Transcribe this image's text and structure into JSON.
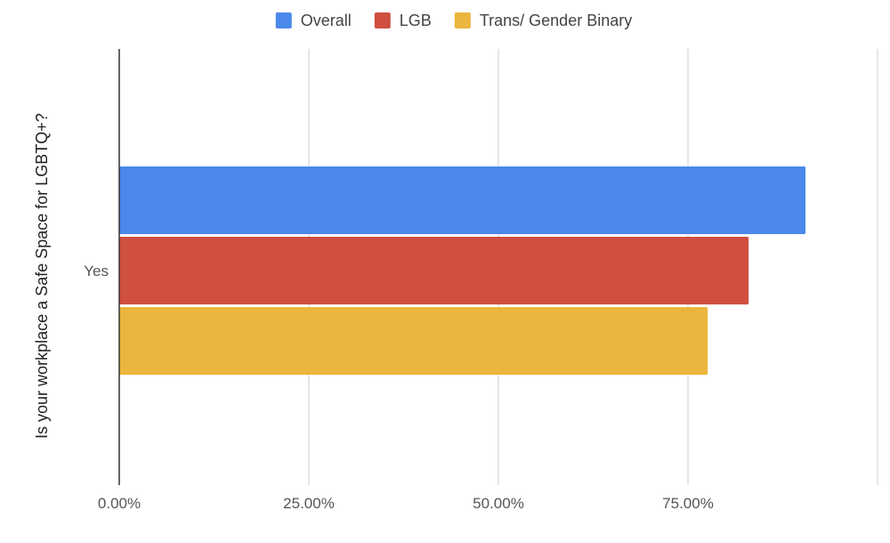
{
  "chart_data": {
    "type": "bar",
    "orientation": "horizontal",
    "categories": [
      "Yes"
    ],
    "series": [
      {
        "name": "Overall",
        "color": "#4a88ea",
        "values": [
          0.905
        ]
      },
      {
        "name": "LGB",
        "color": "#cf4f40",
        "values": [
          0.83
        ]
      },
      {
        "name": "Trans/ Gender Binary",
        "color": "#ecb53d",
        "values": [
          0.776
        ]
      }
    ],
    "title": "",
    "xlabel": "",
    "ylabel": "Is your workplace a Safe Space for LGBTQ+?",
    "xlim": [
      0,
      1
    ],
    "xticks": [
      0,
      0.25,
      0.5,
      0.75,
      1.0
    ],
    "xtick_labels": [
      "0.00%",
      "25.00%",
      "50.00%",
      "75.00%",
      ""
    ],
    "grid": "vertical",
    "legend_position": "top"
  }
}
